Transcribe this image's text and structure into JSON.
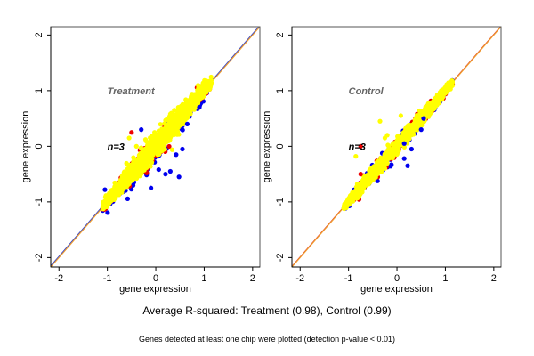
{
  "chart_data": [
    {
      "type": "scatter",
      "panel": "left",
      "title": "",
      "annotations": [
        {
          "text": "Treatment",
          "x": -1.0,
          "y": 1.0,
          "color": "#666666"
        },
        {
          "text": "n=3",
          "x": -1.0,
          "y": 0.0,
          "color": "#000000"
        }
      ],
      "xlabel": "gene expression",
      "ylabel": "gene expression",
      "xlim": [
        -2.17,
        2.15
      ],
      "ylim": [
        -2.17,
        2.15
      ],
      "xticks": [
        -2,
        -1,
        0,
        1,
        2
      ],
      "yticks": [
        -2,
        -1,
        0,
        1,
        2
      ],
      "grid": false,
      "reference_lines": [
        {
          "name": "identity-blue",
          "slope": 1,
          "intercept": 0.02,
          "color": "#3344cc"
        },
        {
          "name": "identity-orange",
          "slope": 1,
          "intercept": 0,
          "color": "#f0a030"
        }
      ],
      "series": [
        {
          "name": "blue",
          "color": "#0000ee",
          "spread_below": 0.28,
          "spread_above": 0.14,
          "x_range": [
            -1.1,
            1.15
          ],
          "count": 260
        },
        {
          "name": "red",
          "color": "#ee0000",
          "spread_below": 0.2,
          "spread_above": 0.2,
          "x_range": [
            -1.1,
            1.15
          ],
          "count": 220
        },
        {
          "name": "yellow",
          "color": "#ffff00",
          "spread_below": 0.16,
          "spread_above": 0.2,
          "x_range": [
            -1.1,
            1.15
          ],
          "count": 1400
        }
      ],
      "outliers": [
        {
          "x": 0.42,
          "y": -0.15,
          "color": "#0000ee"
        },
        {
          "x": 0.55,
          "y": -0.05,
          "color": "#0000ee"
        },
        {
          "x": 0.3,
          "y": -0.45,
          "color": "#0000ee"
        },
        {
          "x": 0.2,
          "y": -0.5,
          "color": "#0000ee"
        },
        {
          "x": 0.48,
          "y": -0.55,
          "color": "#0000ee"
        },
        {
          "x": 0.65,
          "y": 0.4,
          "color": "#0000ee"
        },
        {
          "x": 0.9,
          "y": 0.7,
          "color": "#0000ee"
        },
        {
          "x": -0.1,
          "y": -0.75,
          "color": "#0000ee"
        },
        {
          "x": -0.5,
          "y": 0.25,
          "color": "#ee0000"
        },
        {
          "x": -0.3,
          "y": 0.3,
          "color": "#0000ee"
        },
        {
          "x": -1.05,
          "y": -0.78,
          "color": "#0000ee"
        },
        {
          "x": -0.55,
          "y": 0.15,
          "color": "#ffff00"
        },
        {
          "x": -0.4,
          "y": 0.0,
          "color": "#ffff00"
        }
      ]
    },
    {
      "type": "scatter",
      "panel": "right",
      "title": "",
      "annotations": [
        {
          "text": "Control",
          "x": -1.0,
          "y": 1.0,
          "color": "#666666"
        },
        {
          "text": "n=3",
          "x": -1.0,
          "y": 0.0,
          "color": "#000000"
        }
      ],
      "xlabel": "gene expression",
      "ylabel": "gene expression",
      "xlim": [
        -2.17,
        2.15
      ],
      "ylim": [
        -2.17,
        2.15
      ],
      "xticks": [
        -2,
        -1,
        0,
        1,
        2
      ],
      "yticks": [
        -2,
        -1,
        0,
        1,
        2
      ],
      "grid": false,
      "reference_lines": [
        {
          "name": "identity-red",
          "slope": 1,
          "intercept": 0.01,
          "color": "#dd3322"
        },
        {
          "name": "identity-orange",
          "slope": 1,
          "intercept": 0,
          "color": "#f0a030"
        }
      ],
      "series": [
        {
          "name": "blue",
          "color": "#0000ee",
          "spread_below": 0.14,
          "spread_above": 0.12,
          "x_range": [
            -1.1,
            1.15
          ],
          "count": 200
        },
        {
          "name": "red",
          "color": "#ee0000",
          "spread_below": 0.13,
          "spread_above": 0.13,
          "x_range": [
            -1.1,
            1.15
          ],
          "count": 200
        },
        {
          "name": "yellow",
          "color": "#ffff00",
          "spread_below": 0.11,
          "spread_above": 0.11,
          "x_range": [
            -1.1,
            1.15
          ],
          "count": 1400
        }
      ],
      "outliers": [
        {
          "x": -0.35,
          "y": 0.45,
          "color": "#ffff00"
        },
        {
          "x": 0.08,
          "y": 0.55,
          "color": "#ffff00"
        },
        {
          "x": -0.2,
          "y": 0.2,
          "color": "#ffff00"
        },
        {
          "x": -0.25,
          "y": 0.15,
          "color": "#ffff00"
        },
        {
          "x": -0.85,
          "y": -0.18,
          "color": "#ffff00"
        },
        {
          "x": -0.75,
          "y": 0.0,
          "color": "#ee0000"
        },
        {
          "x": 0.22,
          "y": -0.35,
          "color": "#0000ee"
        },
        {
          "x": 0.15,
          "y": -0.22,
          "color": "#0000ee"
        },
        {
          "x": 0.3,
          "y": -0.05,
          "color": "#0000ee"
        },
        {
          "x": 0.55,
          "y": 0.5,
          "color": "#0000ee"
        },
        {
          "x": 0.5,
          "y": 0.3,
          "color": "#0000ee"
        },
        {
          "x": 0.15,
          "y": 0.05,
          "color": "#0000ee"
        },
        {
          "x": -0.75,
          "y": -0.5,
          "color": "#ee0000"
        }
      ]
    }
  ],
  "footer": {
    "summary": "Average R-squared: Treatment (0.98), Control (0.99)",
    "note": "Genes detected at least one chip were plotted (detection p-value < 0.01)"
  }
}
